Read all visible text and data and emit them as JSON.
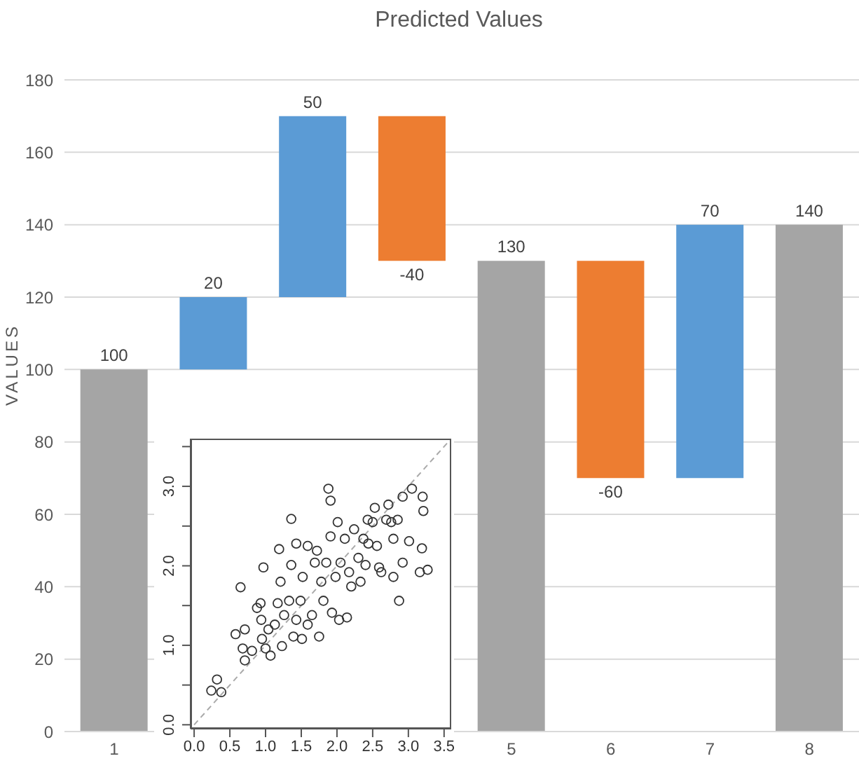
{
  "chart_data": [
    {
      "type": "bar",
      "title": "Predicted Values",
      "ylabel": "VALUES",
      "categories": [
        "1",
        null,
        null,
        null,
        "5",
        "6",
        "7",
        "8"
      ],
      "values": [
        100,
        20,
        50,
        -40,
        130,
        -60,
        70,
        140
      ],
      "base": [
        0,
        100,
        120,
        170,
        0,
        130,
        70,
        0
      ],
      "colors": [
        "#a5a5a5",
        "#5b9bd5",
        "#5b9bd5",
        "#ed7d31",
        "#a5a5a5",
        "#ed7d31",
        "#5b9bd5",
        "#a5a5a5"
      ],
      "ylim": [
        0,
        180
      ],
      "yticks": [
        0,
        20,
        40,
        60,
        80,
        100,
        120,
        140,
        160,
        180
      ],
      "grid": "y",
      "data_labels": true
    },
    {
      "type": "scatter",
      "xlim": [
        -0.05,
        3.6
      ],
      "ylim": [
        -0.05,
        3.6
      ],
      "xticks": [
        {
          "value": 0,
          "label": "0.0"
        },
        {
          "value": 0.5,
          "label": "0.5"
        },
        {
          "value": 1,
          "label": "1.0"
        },
        {
          "value": 1.5,
          "label": "1.5"
        },
        {
          "value": 2,
          "label": "2.0"
        },
        {
          "value": 2.5,
          "label": "2.5"
        },
        {
          "value": 3,
          "label": "3.0"
        },
        {
          "value": 3.5,
          "label": "3.5"
        }
      ],
      "yticks": [
        {
          "value": 0,
          "label": "0.0"
        },
        {
          "value": 0.5,
          "label": null
        },
        {
          "value": 1,
          "label": "1.0"
        },
        {
          "value": 1.5,
          "label": null
        },
        {
          "value": 2,
          "label": "2.0"
        },
        {
          "value": 2.5,
          "label": null
        },
        {
          "value": 3,
          "label": "3.0"
        },
        {
          "value": 3.5,
          "label": null
        }
      ],
      "series": [
        {
          "type": "scatter",
          "color": "#333333",
          "marker": "circle",
          "x": [
            0.24,
            0.32,
            0.38,
            0.65,
            0.58,
            0.71,
            0.68,
            0.71,
            0.81,
            0.88,
            0.93,
            0.97,
            0.94,
            0.95,
            1.0,
            1.07,
            1.04,
            1.13,
            1.17,
            1.19,
            1.21,
            1.23,
            1.26,
            1.33,
            1.36,
            1.36,
            1.39,
            1.43,
            1.43,
            1.49,
            1.51,
            1.52,
            1.59,
            1.59,
            1.65,
            1.69,
            1.72,
            1.75,
            1.78,
            1.81,
            1.88,
            1.91,
            1.85,
            1.91,
            1.93,
            1.98,
            2.01,
            2.03,
            2.05,
            2.11,
            2.14,
            2.17,
            2.2,
            2.24,
            2.3,
            2.33,
            2.37,
            2.4,
            2.43,
            2.44,
            2.5,
            2.53,
            2.56,
            2.59,
            2.62,
            2.69,
            2.72,
            2.76,
            2.79,
            2.79,
            2.85,
            2.87,
            2.92,
            2.92,
            3.01,
            3.05,
            3.16,
            3.19,
            3.2,
            3.21,
            3.27
          ],
          "values": [
            0.43,
            0.57,
            0.41,
            1.73,
            1.14,
            1.2,
            0.96,
            0.81,
            0.93,
            1.47,
            1.53,
            1.98,
            1.32,
            1.08,
            0.96,
            0.87,
            1.2,
            1.26,
            1.53,
            2.21,
            1.8,
            0.99,
            1.38,
            1.56,
            2.59,
            2.01,
            1.11,
            2.28,
            1.32,
            1.56,
            1.08,
            1.86,
            2.25,
            1.26,
            1.38,
            2.04,
            2.19,
            1.11,
            1.8,
            1.56,
            2.97,
            2.82,
            2.04,
            2.37,
            1.41,
            1.86,
            2.55,
            1.32,
            2.04,
            2.34,
            1.35,
            1.92,
            1.74,
            2.46,
            2.1,
            1.8,
            2.34,
            2.01,
            2.58,
            2.28,
            2.55,
            2.73,
            2.25,
            1.98,
            1.92,
            2.58,
            2.77,
            2.55,
            2.34,
            1.86,
            2.58,
            1.56,
            2.04,
            2.87,
            2.31,
            2.97,
            1.92,
            2.22,
            2.87,
            2.69,
            1.95
          ]
        },
        {
          "type": "line",
          "color": "#aaaaaa",
          "line_style": "dashed",
          "marker": "none",
          "x": [
            0,
            3.6
          ],
          "values": [
            0,
            3.6
          ]
        }
      ]
    }
  ]
}
